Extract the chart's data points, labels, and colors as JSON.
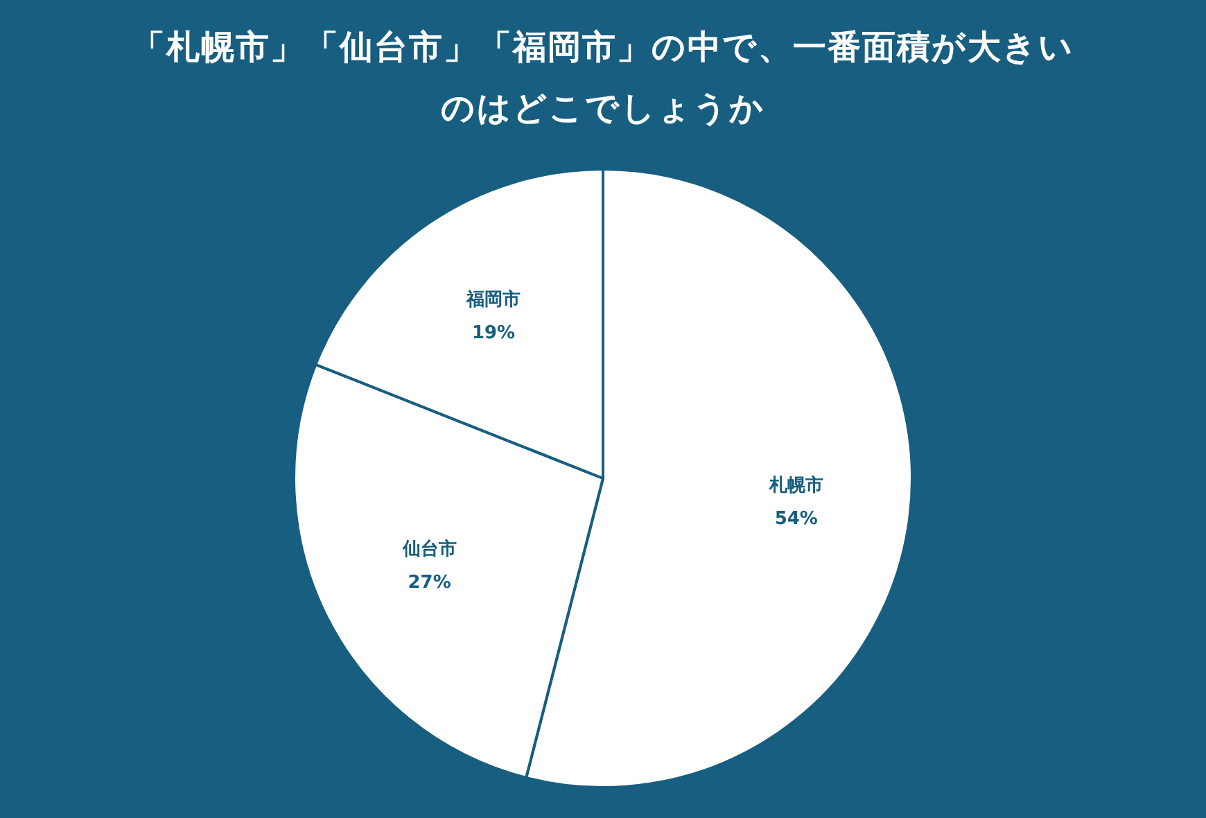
{
  "chart_data": {
    "type": "pie",
    "title": "「札幌市」「仙台市」「福岡市」の中で、一番面積が大きいのはどこでしょうか",
    "categories": [
      "札幌市",
      "仙台市",
      "福岡市"
    ],
    "values": [
      54,
      27,
      19
    ],
    "value_labels": [
      "54%",
      "27%",
      "19%"
    ],
    "colors": [
      "#ffffff",
      "#ffffff",
      "#ffffff"
    ],
    "legend": false
  }
}
